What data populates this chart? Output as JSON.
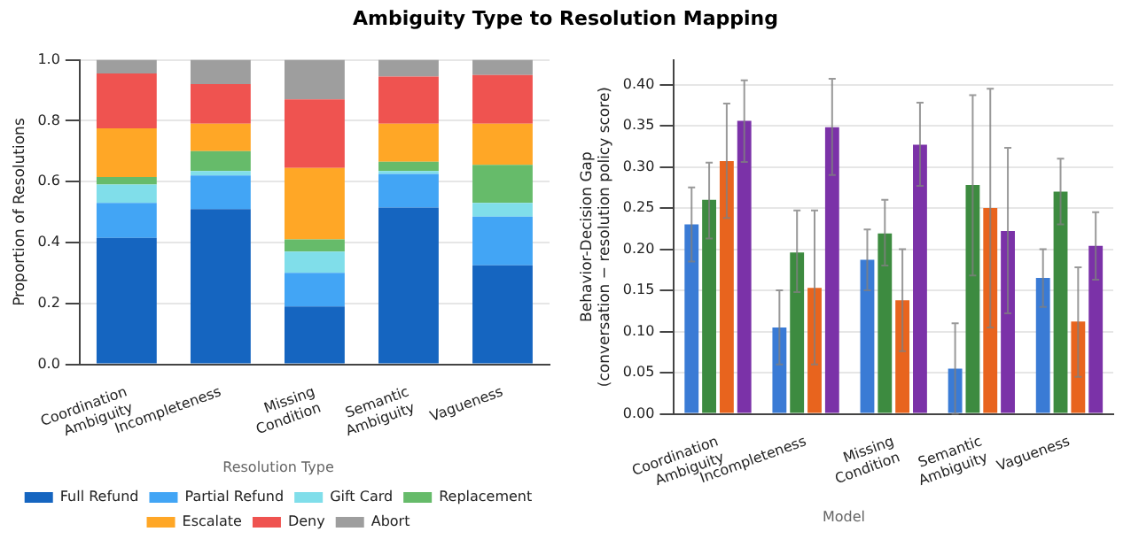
{
  "chart_data": [
    {
      "type": "bar",
      "title": "Ambiguity Type to Resolution Mapping",
      "ylabel": "Proportion of Resolutions",
      "legend_title": "Resolution Type",
      "stacked": true,
      "grid": "y",
      "legend": "bottom",
      "categories": [
        "Coordination Ambiguity",
        "Incompleteness",
        "Missing Condition",
        "Semantic Ambiguity",
        "Vagueness"
      ],
      "ylim": [
        0,
        1
      ],
      "yticks": [
        {
          "value": 0,
          "label": "0.0"
        },
        {
          "value": 0.2,
          "label": "0.2"
        },
        {
          "value": 0.4,
          "label": "0.4"
        },
        {
          "value": 0.6,
          "label": "0.6"
        },
        {
          "value": 0.8,
          "label": "0.8"
        },
        {
          "value": 1,
          "label": "1.0"
        }
      ],
      "series": [
        {
          "name": "Full Refund",
          "color": "#1565c0",
          "values": [
            0.415,
            0.51,
            0.19,
            0.515,
            0.325
          ]
        },
        {
          "name": "Partial Refund",
          "color": "#42a5f5",
          "values": [
            0.115,
            0.11,
            0.11,
            0.11,
            0.16
          ]
        },
        {
          "name": "Gift Card",
          "color": "#80deea",
          "values": [
            0.06,
            0.015,
            0.07,
            0.01,
            0.045
          ]
        },
        {
          "name": "Replacement",
          "color": "#66bb6a",
          "values": [
            0.025,
            0.065,
            0.04,
            0.03,
            0.125
          ]
        },
        {
          "name": "Escalate",
          "color": "#ffa726",
          "values": [
            0.16,
            0.09,
            0.235,
            0.125,
            0.135
          ]
        },
        {
          "name": "Deny",
          "color": "#ef5350",
          "values": [
            0.18,
            0.13,
            0.225,
            0.155,
            0.16
          ]
        },
        {
          "name": "Abort",
          "color": "#9e9e9e",
          "values": [
            0.045,
            0.08,
            0.13,
            0.055,
            0.05
          ]
        }
      ]
    },
    {
      "type": "bar",
      "ylabel": "Behavior-Decision Gap\n(conversation − resolution policy score)",
      "legend_title": "Model",
      "grid": "y",
      "categories": [
        "Coordination Ambiguity",
        "Incompleteness",
        "Missing Condition",
        "Semantic Ambiguity",
        "Vagueness"
      ],
      "ylim": [
        0,
        0.43
      ],
      "yticks": [
        {
          "value": 0,
          "label": "0.00"
        },
        {
          "value": 0.05,
          "label": "0.05"
        },
        {
          "value": 0.1,
          "label": "0.10"
        },
        {
          "value": 0.15,
          "label": "0.15"
        },
        {
          "value": 0.2,
          "label": "0.20"
        },
        {
          "value": 0.25,
          "label": "0.25"
        },
        {
          "value": 0.3,
          "label": "0.30"
        },
        {
          "value": 0.35,
          "label": "0.35"
        },
        {
          "value": 0.4,
          "label": "0.40"
        }
      ],
      "series": [
        {
          "color": "#3a7bd5",
          "values": [
            0.23,
            0.105,
            0.187,
            0.055,
            0.165
          ],
          "errors": [
            [
              0.185,
              0.275
            ],
            [
              0.06,
              0.15
            ],
            [
              0.15,
              0.224
            ],
            [
              0,
              0.11
            ],
            [
              0.13,
              0.2
            ]
          ]
        },
        {
          "color": "#3d8b40",
          "values": [
            0.26,
            0.196,
            0.219,
            0.278,
            0.27
          ],
          "errors": [
            [
              0.213,
              0.305
            ],
            [
              0.148,
              0.247
            ],
            [
              0.18,
              0.26
            ],
            [
              0.168,
              0.387
            ],
            [
              0.23,
              0.31
            ]
          ]
        },
        {
          "color": "#e8641e",
          "values": [
            0.307,
            0.153,
            0.138,
            0.25,
            0.112
          ],
          "errors": [
            [
              0.238,
              0.377
            ],
            [
              0.06,
              0.247
            ],
            [
              0.076,
              0.2
            ],
            [
              0.105,
              0.395
            ],
            [
              0.045,
              0.178
            ]
          ]
        },
        {
          "color": "#7b32a8",
          "values": [
            0.356,
            0.348,
            0.327,
            0.222,
            0.204
          ],
          "errors": [
            [
              0.306,
              0.405
            ],
            [
              0.29,
              0.407
            ],
            [
              0.277,
              0.378
            ],
            [
              0.122,
              0.323
            ],
            [
              0.163,
              0.245
            ]
          ]
        }
      ]
    }
  ]
}
